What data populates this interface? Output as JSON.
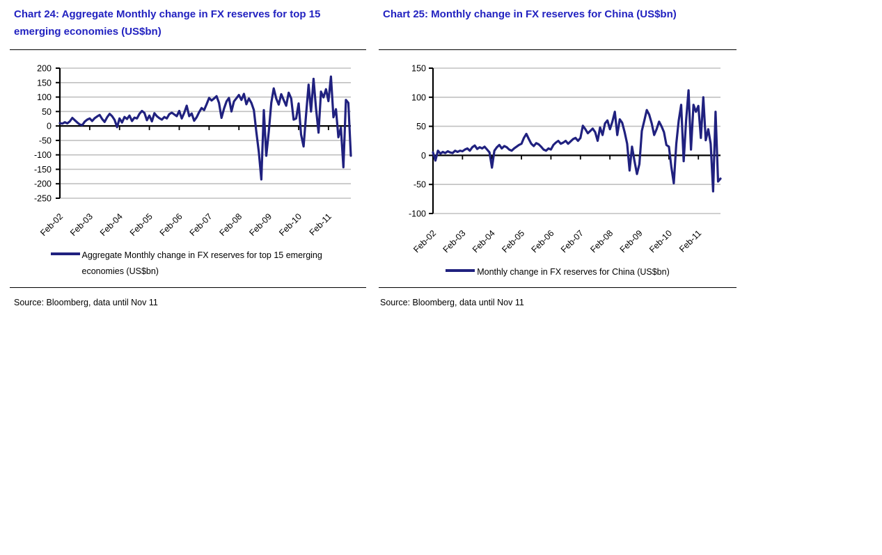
{
  "colors": {
    "title_blue": "#2222C0",
    "line_navy": "#20217F",
    "gridline_gray": "#C0C0C0",
    "axis_black": "#000000"
  },
  "chart_data": [
    {
      "type": "line",
      "title": "Chart 24: Aggregate Monthly change in FX reserves for top 15 emerging economies (US$bn)",
      "source": "Source: Bloomberg, data until Nov 11",
      "frequency": "monthly",
      "x_start": "Feb-02",
      "x_end": "Nov-11",
      "x_tick_labels": [
        "Feb-02",
        "Feb-03",
        "Feb-04",
        "Feb-05",
        "Feb-06",
        "Feb-07",
        "Feb-08",
        "Feb-09",
        "Feb-10",
        "Feb-11"
      ],
      "ylim": [
        -250,
        200
      ],
      "yticks": [
        200,
        150,
        100,
        50,
        0,
        -50,
        -100,
        -150,
        -200,
        -250
      ],
      "grid": "horizontal",
      "legend_position": "bottom",
      "series": [
        {
          "name": "Aggregate Monthly change in FX reserves for top 15 emerging economies (US$bn)",
          "values": [
            10,
            8,
            13,
            9,
            16,
            28,
            20,
            12,
            5,
            3,
            15,
            22,
            26,
            17,
            27,
            33,
            38,
            24,
            14,
            30,
            42,
            34,
            21,
            -4,
            26,
            12,
            31,
            24,
            36,
            17,
            29,
            26,
            42,
            52,
            45,
            20,
            36,
            16,
            44,
            34,
            27,
            22,
            31,
            26,
            41,
            46,
            40,
            34,
            52,
            26,
            45,
            70,
            34,
            43,
            18,
            30,
            48,
            62,
            55,
            75,
            97,
            88,
            95,
            103,
            80,
            28,
            60,
            85,
            97,
            50,
            85,
            96,
            107,
            90,
            111,
            75,
            95,
            80,
            55,
            -20,
            -90,
            -185,
            55,
            -103,
            -20,
            80,
            130,
            95,
            74,
            110,
            90,
            70,
            115,
            95,
            22,
            26,
            78,
            -30,
            -71,
            40,
            143,
            50,
            163,
            60,
            -23,
            119,
            99,
            127,
            86,
            171,
            30,
            58,
            -39,
            -6,
            -143,
            90,
            80,
            -103
          ]
        }
      ]
    },
    {
      "type": "line",
      "title": "Chart 25: Monthly change in FX reserves for China (US$bn)",
      "source": "Source: Bloomberg, data until Nov 11",
      "frequency": "monthly",
      "x_start": "Feb-02",
      "x_end": "Nov-11",
      "x_tick_labels": [
        "Feb-02",
        "Feb-03",
        "Feb-04",
        "Feb-05",
        "Feb-06",
        "Feb-07",
        "Feb-08",
        "Feb-09",
        "Feb-10",
        "Feb-11"
      ],
      "ylim": [
        -100,
        150
      ],
      "yticks": [
        150,
        100,
        50,
        0,
        -50,
        -100
      ],
      "grid": "horizontal",
      "legend_position": "bottom",
      "series": [
        {
          "name": "Monthly change in FX reserves for China (US$bn)",
          "values": [
            5,
            -9,
            8,
            3,
            6,
            4,
            7,
            5,
            4,
            8,
            6,
            8,
            7,
            10,
            12,
            8,
            14,
            17,
            11,
            14,
            12,
            15,
            10,
            5,
            -21,
            8,
            14,
            18,
            12,
            16,
            14,
            10,
            8,
            12,
            15,
            18,
            20,
            30,
            37,
            28,
            20,
            16,
            21,
            19,
            15,
            10,
            8,
            12,
            10,
            18,
            22,
            25,
            20,
            22,
            25,
            20,
            24,
            28,
            30,
            25,
            30,
            51,
            45,
            38,
            42,
            46,
            40,
            25,
            48,
            35,
            55,
            60,
            45,
            58,
            75,
            35,
            62,
            56,
            40,
            20,
            -26,
            15,
            -10,
            -32,
            -15,
            42,
            60,
            78,
            70,
            55,
            35,
            45,
            58,
            50,
            40,
            18,
            15,
            -20,
            -48,
            20,
            60,
            87,
            -10,
            60,
            112,
            10,
            87,
            75,
            85,
            30,
            100,
            26,
            45,
            20,
            -62,
            75,
            -45,
            -40
          ]
        }
      ]
    }
  ]
}
